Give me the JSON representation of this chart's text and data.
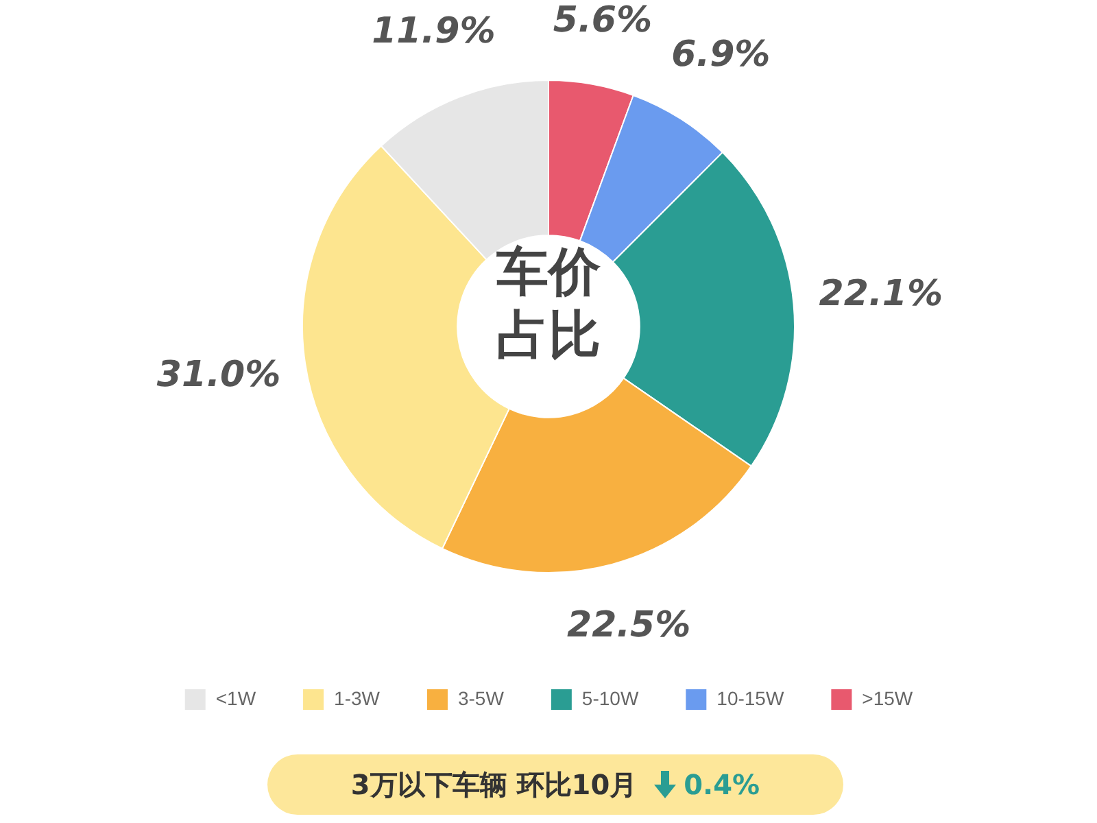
{
  "chart_data": {
    "type": "donut",
    "categories": [
      ">15W",
      "10-15W",
      "5-10W",
      "3-5W",
      "1-3W",
      "<1W"
    ],
    "values": [
      5.6,
      6.9,
      22.1,
      22.5,
      31.0,
      11.9
    ],
    "value_labels": [
      "5.6%",
      "6.9%",
      "22.1%",
      "22.5%",
      "31.0%",
      "11.9%"
    ],
    "colors": [
      "#e8596e",
      "#6a9bef",
      "#2a9d93",
      "#f8b040",
      "#fde58f",
      "#e6e6e6"
    ],
    "legend": "bottom",
    "annotations": [
      "车价占比",
      "3万以下车辆  环比10月",
      "0.4%"
    ]
  }
}
